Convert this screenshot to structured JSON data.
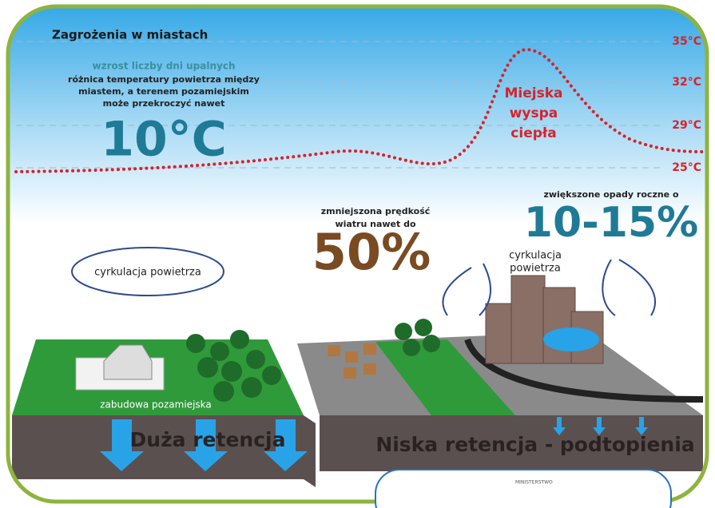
{
  "header": {
    "title": "Zagrożenia w miastach"
  },
  "temperature": {
    "subtitle": "wzrost liczby dni upalnych",
    "lines": [
      "różnica temperatury powietrza między",
      "miastem, a terenem pozamiejskim",
      "może przekroczyć nawet"
    ],
    "value": "10°C",
    "scale": [
      "35°C",
      "32°C",
      "29°C",
      "25°C"
    ],
    "island": [
      "Miejska",
      "wyspa",
      "ciepła"
    ]
  },
  "wind": {
    "lines": [
      "zmniejszona prędkość",
      "wiatru nawet do"
    ],
    "value": "50%"
  },
  "rain": {
    "text": "zwiększone opady roczne o",
    "value": "10-15%"
  },
  "left": {
    "circulation": "cyrkulacja powietrza",
    "area": "zabudowa pozamiejska",
    "retention": "Duża retencja"
  },
  "right": {
    "circulation": [
      "cyrkulacja",
      "powietrza"
    ],
    "retention": "Niska retencja - podtopienia"
  },
  "footer": {
    "logo": "MINISTERSTWO"
  }
}
